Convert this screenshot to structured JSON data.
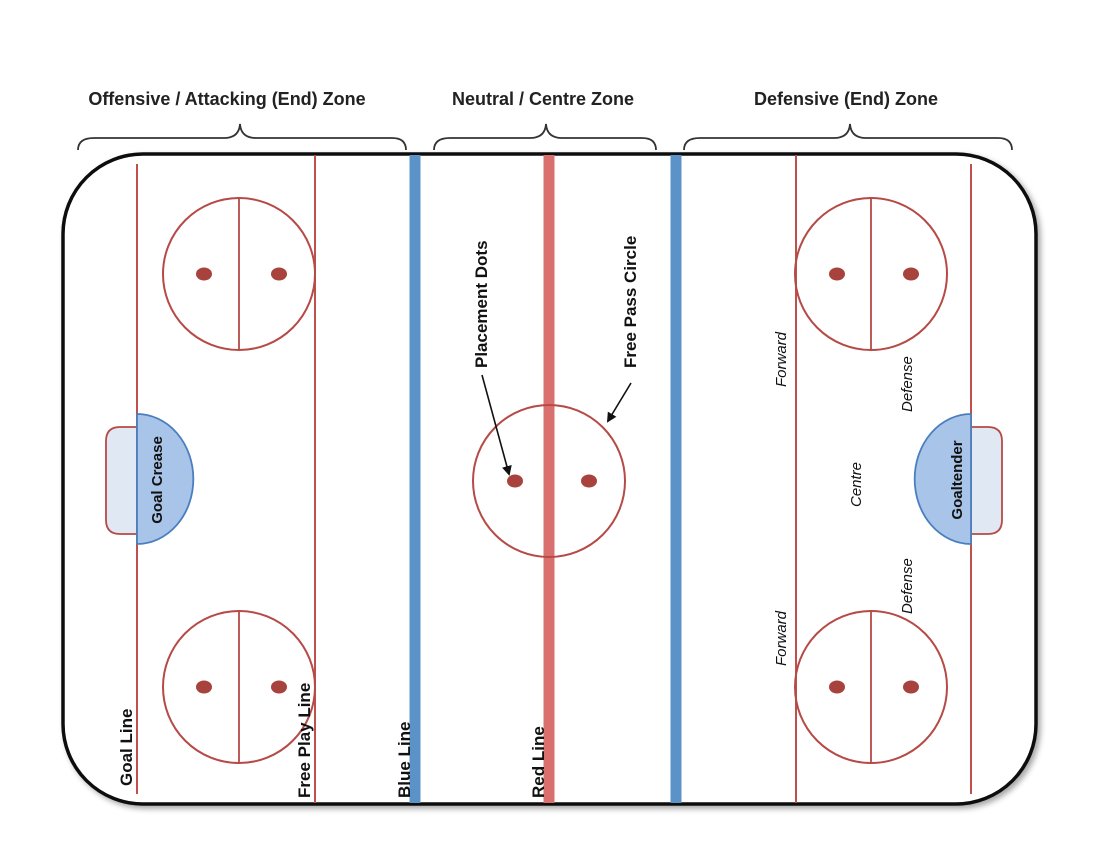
{
  "zones": {
    "offensive": "Offensive / Attacking (End) Zone",
    "neutral": "Neutral / Centre Zone",
    "defensive": "Defensive (End) Zone"
  },
  "lines": {
    "goal_line": "Goal Line",
    "free_play_line": "Free Play Line",
    "blue_line": "Blue Line",
    "red_line": "Red Line"
  },
  "annotations": {
    "placement_dots": "Placement Dots",
    "free_pass_circle": "Free Pass Circle"
  },
  "crease": {
    "goal_crease": "Goal Crease",
    "goaltender": "Goaltender"
  },
  "positions": {
    "forward_top": "Forward",
    "forward_bottom": "Forward",
    "defense_top": "Defense",
    "defense_bottom": "Defense",
    "centre": "Centre"
  },
  "colors": {
    "blue_line": "#5b93c8",
    "red_line": "#d9706e",
    "thin_line": "#b54a46",
    "dot": "#a8423d",
    "crease_fill": "#a8c4e8",
    "crease_light": "#dfe8f3",
    "board": "#111111"
  }
}
